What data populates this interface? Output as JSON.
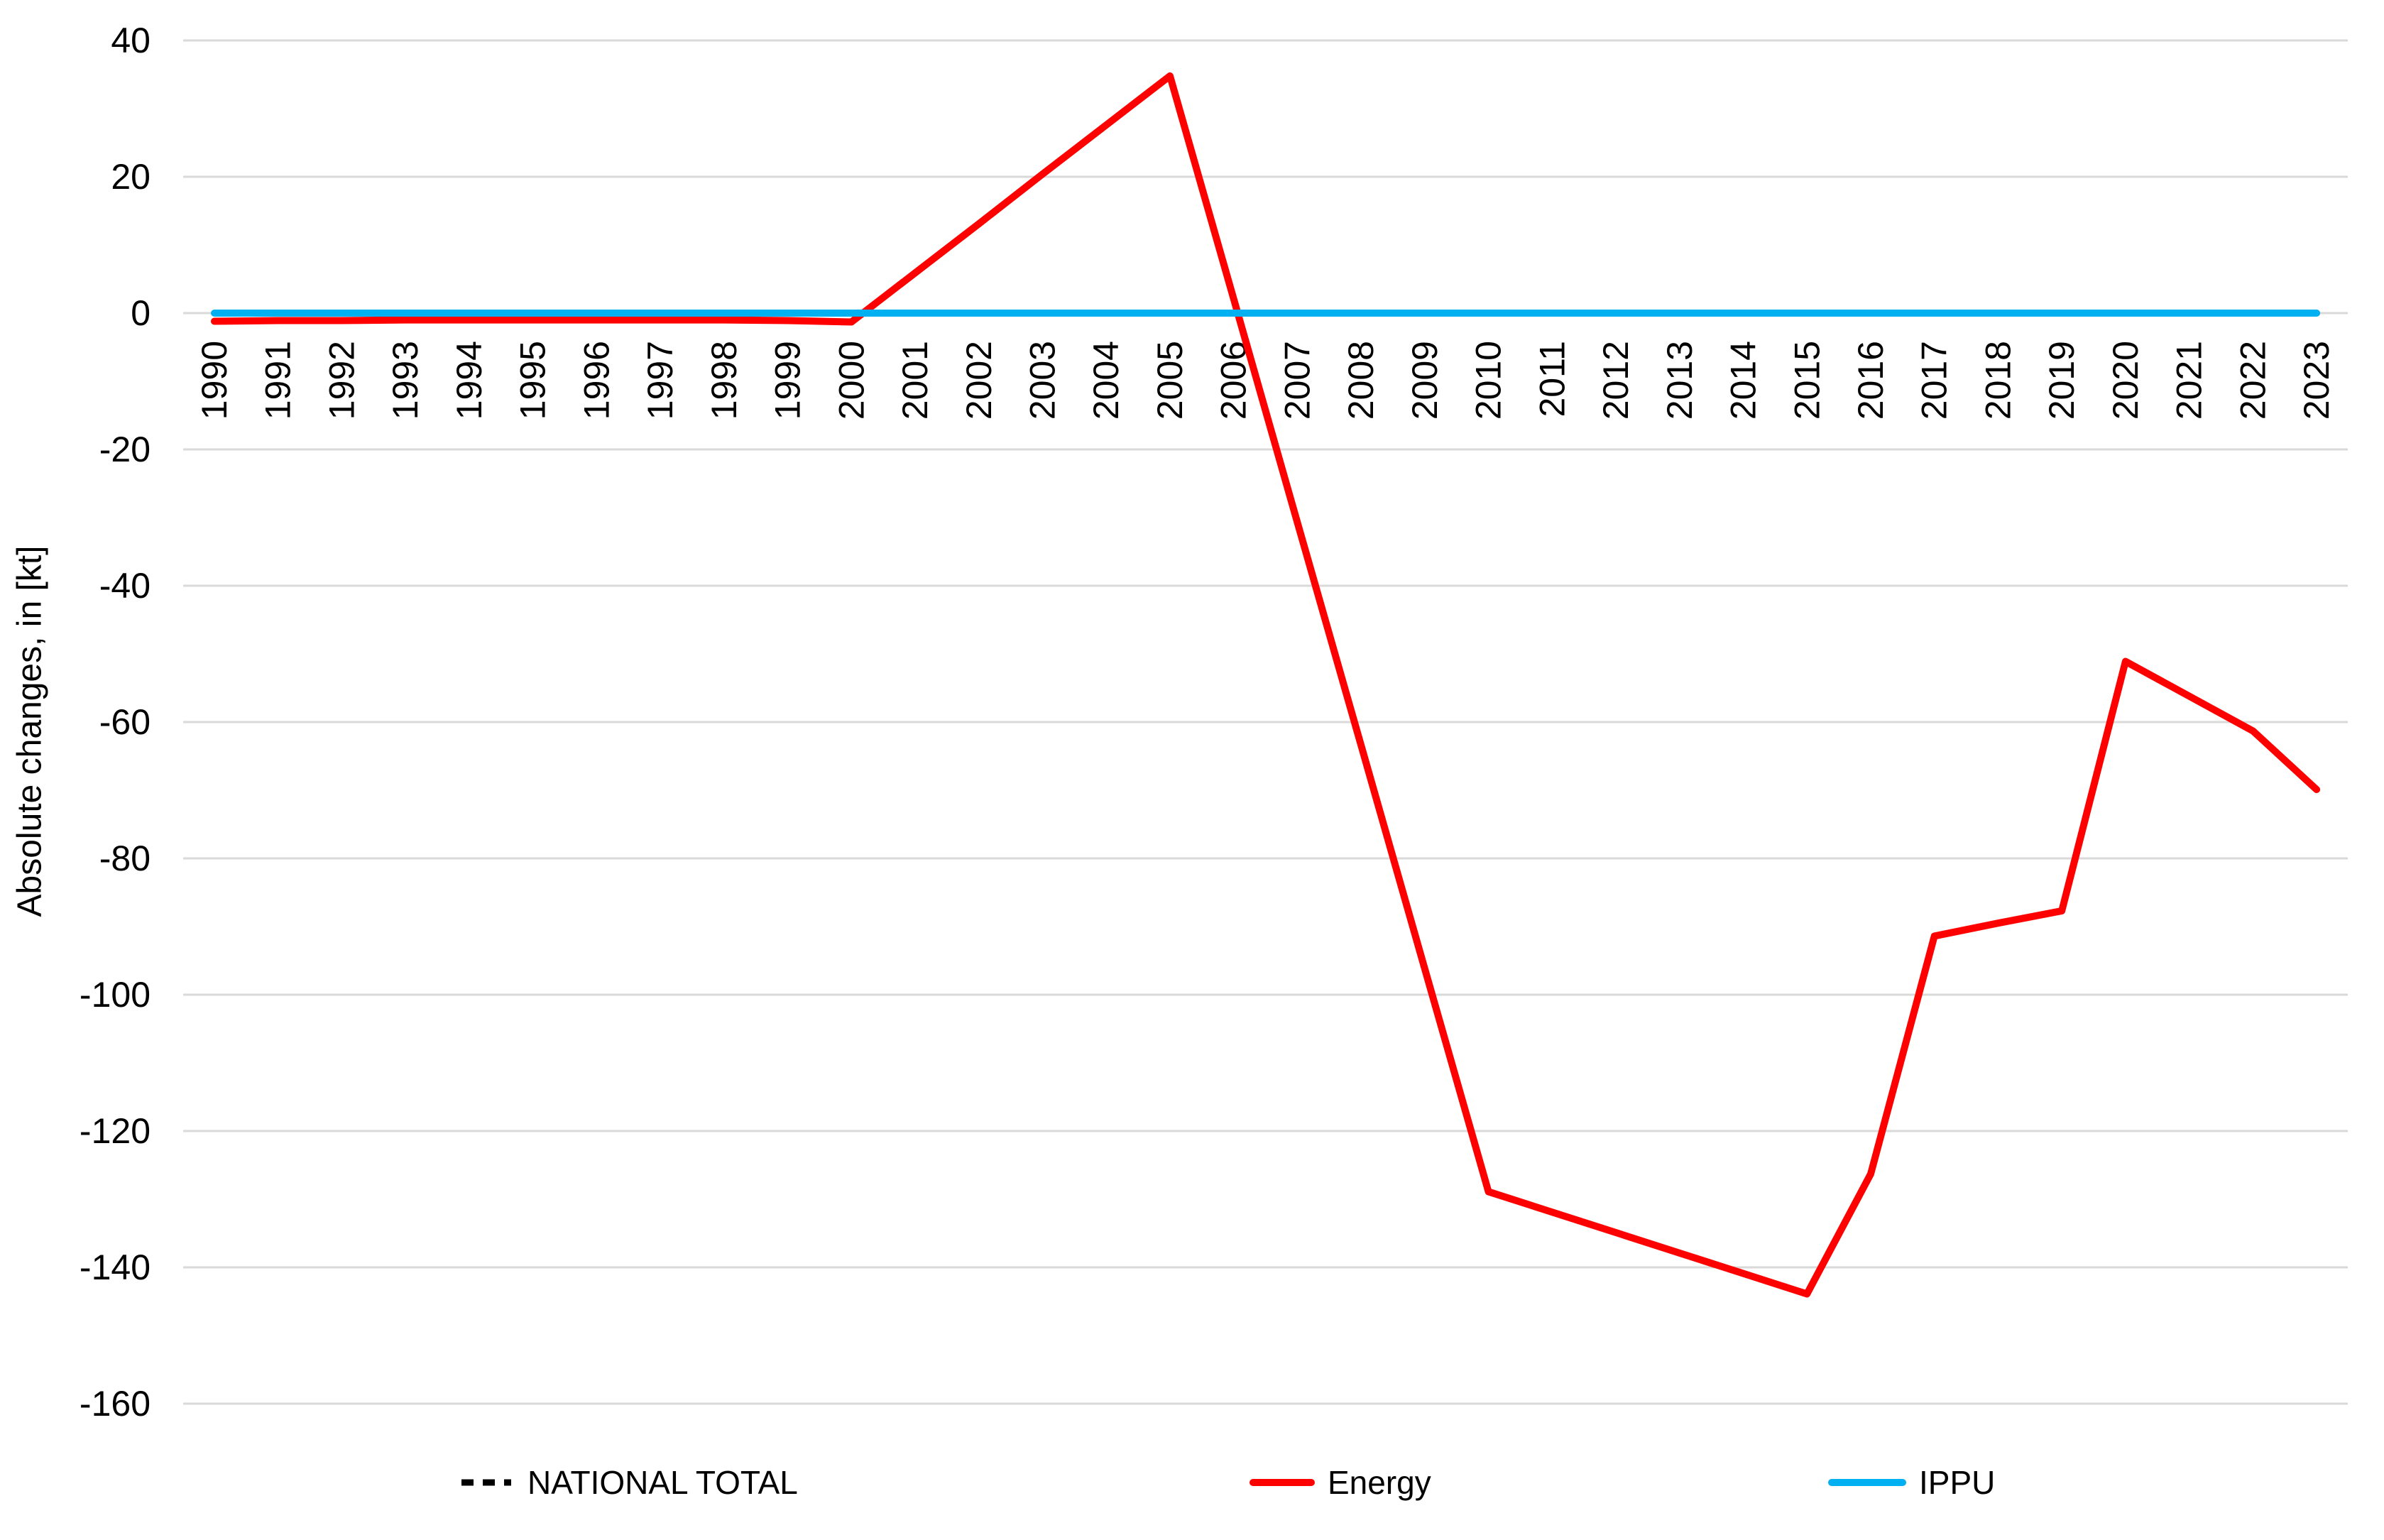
{
  "chart_data": {
    "type": "line",
    "title": "",
    "xlabel": "",
    "ylabel": "Absolute changes, in [kt]",
    "ylim": [
      -160,
      40
    ],
    "ytick_interval": 20,
    "yticks": [
      40,
      20,
      0,
      -20,
      -40,
      -60,
      -80,
      -100,
      -120,
      -140,
      -160
    ],
    "grid": true,
    "gridline_color": "#D9D9D9",
    "legend_position": "bottom",
    "categories": [
      "1990",
      "1991",
      "1992",
      "1993",
      "1994",
      "1995",
      "1996",
      "1997",
      "1998",
      "1999",
      "2000",
      "2001",
      "2002",
      "2003",
      "2004",
      "2005",
      "2006",
      "2007",
      "2008",
      "2009",
      "2010",
      "2011",
      "2012",
      "2013",
      "2014",
      "2015",
      "2016",
      "2017",
      "2018",
      "2019",
      "2020",
      "2021",
      "2022",
      "2023"
    ],
    "series": [
      {
        "name": "NATIONAL TOTAL",
        "color": "#000000",
        "style": "dashed",
        "values": [
          -1.2,
          -1.1,
          -1.1,
          -1.0,
          -1.0,
          -1.0,
          -1.0,
          -1.0,
          -1.0,
          -1.1,
          -1.3,
          5.9,
          13.1,
          20.4,
          27.6,
          34.8,
          2.1,
          -30.7,
          -63.4,
          -96.2,
          -128.9,
          -131.9,
          -134.9,
          -137.9,
          -140.9,
          -143.9,
          -126.3,
          -91.4,
          -89.5,
          -87.7,
          -51.1,
          -56.2,
          -61.3,
          -69.9
        ]
      },
      {
        "name": "Energy",
        "color": "#FF0000",
        "style": "solid",
        "values": [
          -1.2,
          -1.1,
          -1.1,
          -1.0,
          -1.0,
          -1.0,
          -1.0,
          -1.0,
          -1.0,
          -1.1,
          -1.3,
          5.9,
          13.1,
          20.4,
          27.6,
          34.8,
          2.1,
          -30.7,
          -63.4,
          -96.2,
          -128.9,
          -131.9,
          -134.9,
          -137.9,
          -140.9,
          -143.9,
          -126.3,
          -91.4,
          -89.5,
          -87.7,
          -51.1,
          -56.2,
          -61.3,
          -69.9
        ]
      },
      {
        "name": "IPPU",
        "color": "#00B0F0",
        "style": "solid",
        "values": [
          0.0,
          0.0,
          0.0,
          0.0,
          0.0,
          0.0,
          0.0,
          0.0,
          0.0,
          0.0,
          0.0,
          0.0,
          0.0,
          0.0,
          0.0,
          0.0,
          0.0,
          0.0,
          0.0,
          0.0,
          0.0,
          0.0,
          0.0,
          0.0,
          0.0,
          0.0,
          0.0,
          0.0,
          0.0,
          0.0,
          0.0,
          0.0,
          0.0,
          0.0
        ]
      }
    ]
  }
}
